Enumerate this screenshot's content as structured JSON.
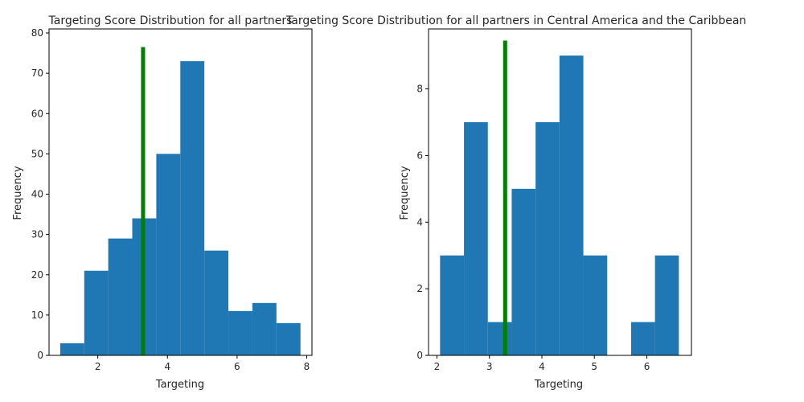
{
  "chart_data": [
    {
      "type": "bar",
      "title": "Targeting Score Distribution for all partners",
      "xlabel": "Targeting",
      "ylabel": "Frequency",
      "bin_edges": [
        0.92,
        1.61,
        2.3,
        2.99,
        3.68,
        4.37,
        5.06,
        5.75,
        6.44,
        7.13,
        7.82
      ],
      "values": [
        3,
        21,
        29,
        34,
        50,
        73,
        26,
        11,
        13,
        8
      ],
      "xlim": [
        0.6,
        8.15
      ],
      "ylim": [
        0,
        81
      ],
      "xticks": [
        2,
        4,
        6,
        8
      ],
      "yticks": [
        0,
        10,
        20,
        30,
        40,
        50,
        60,
        70,
        80
      ],
      "reference_line": {
        "x": 3.3,
        "y_max": 76.5,
        "color": "#008000"
      },
      "bar_color": "#1f77b4"
    },
    {
      "type": "bar",
      "title": "Targeting Score Distribution for all partners in Central America and the Caribbean",
      "xlabel": "Targeting",
      "ylabel": "Frequency",
      "bin_edges": [
        2.06,
        2.515,
        2.97,
        3.425,
        3.88,
        4.335,
        4.79,
        5.245,
        5.7,
        6.155,
        6.61
      ],
      "values": [
        3,
        7,
        1,
        5,
        7,
        9,
        3,
        0,
        1,
        3
      ],
      "xlim": [
        1.84,
        6.85
      ],
      "ylim": [
        0,
        9.8
      ],
      "xticks": [
        2,
        3,
        4,
        5,
        6
      ],
      "yticks": [
        0,
        2,
        4,
        6,
        8
      ],
      "reference_line": {
        "x": 3.3,
        "y_max": 9.45,
        "color": "#008000"
      },
      "bar_color": "#1f77b4"
    }
  ]
}
